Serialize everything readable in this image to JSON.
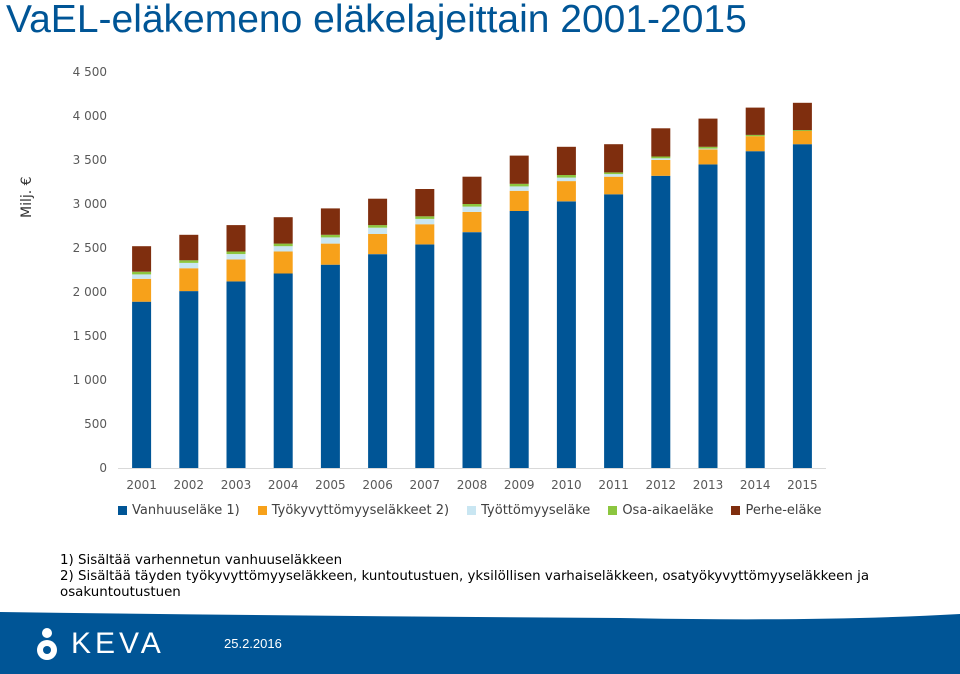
{
  "page": {
    "title": "VaEL-eläkemeno eläkelajeittain 2001-2015",
    "date": "25.2.2016",
    "logo_text": "KEVA"
  },
  "notes": [
    "1) Sisältää varhennetun vanhuuseläkkeen",
    "2) Sisältää täyden työkyvyttömyyseläkkeen, kuntoutustuen, yksilöllisen varhaiseläkkeen, osatyökyvyttömyyseläkkeen ja osakuntoutustuen"
  ],
  "chart_data": {
    "type": "bar",
    "stacked": true,
    "title": "VaEL-eläkemeno eläkelajeittain 2001-2015",
    "ylabel": "Milj. €",
    "xlabel": "",
    "ylim": [
      0,
      4500
    ],
    "yticks": [
      0,
      500,
      1000,
      1500,
      2000,
      2500,
      3000,
      3500,
      4000,
      4500
    ],
    "ytick_labels": [
      "0",
      "500",
      "1 000",
      "1 500",
      "2 000",
      "2 500",
      "3 000",
      "3 500",
      "4 000",
      "4 500"
    ],
    "grid": false,
    "legend_position": "bottom",
    "categories": [
      "2001",
      "2002",
      "2003",
      "2004",
      "2005",
      "2006",
      "2007",
      "2008",
      "2009",
      "2010",
      "2011",
      "2012",
      "2013",
      "2014",
      "2015"
    ],
    "series": [
      {
        "name": "Vanhuuseläke 1)",
        "color": "#005596",
        "values": [
          1890,
          2010,
          2120,
          2210,
          2310,
          2430,
          2540,
          2680,
          2920,
          3030,
          3110,
          3320,
          3450,
          3600,
          3680
        ]
      },
      {
        "name": "Työkyvyttömyyseläkkeet 2)",
        "color": "#f7a11a",
        "values": [
          260,
          260,
          250,
          250,
          240,
          230,
          230,
          230,
          230,
          230,
          200,
          180,
          170,
          170,
          150
        ]
      },
      {
        "name": "Työttömyyseläke",
        "color": "#c9e6f2",
        "values": [
          50,
          60,
          60,
          60,
          70,
          70,
          60,
          60,
          50,
          40,
          30,
          20,
          10,
          0,
          0
        ]
      },
      {
        "name": "Osa-aikaeläke",
        "color": "#8cc63f",
        "values": [
          30,
          30,
          30,
          30,
          30,
          30,
          30,
          30,
          30,
          30,
          20,
          20,
          20,
          15,
          10
        ]
      },
      {
        "name": "Perhe-eläke",
        "color": "#7f2e0e",
        "values": [
          290,
          290,
          300,
          300,
          300,
          300,
          310,
          310,
          320,
          320,
          320,
          320,
          320,
          310,
          310
        ]
      }
    ]
  }
}
